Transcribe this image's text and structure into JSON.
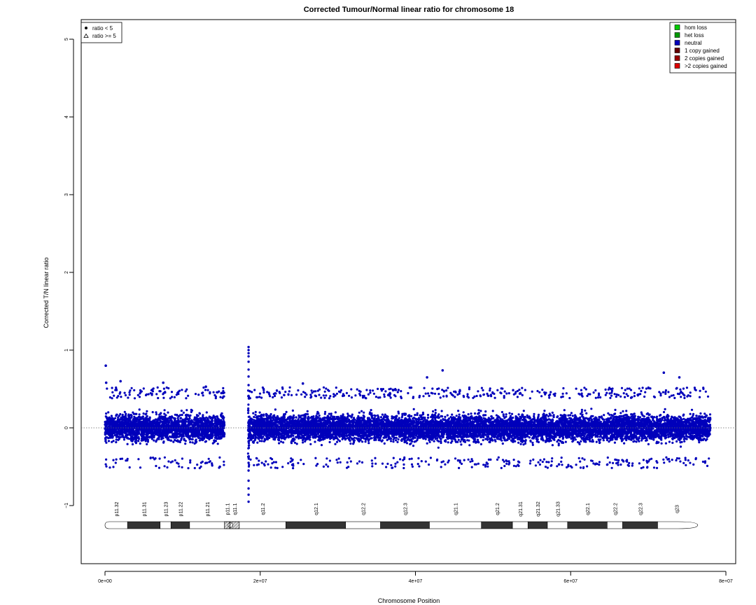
{
  "chart_data": {
    "type": "scatter",
    "title": "Corrected Tumour/Normal linear ratio for chromosome  18",
    "xlabel": "Chromosome Position",
    "ylabel": "Corrected T/N linear ratio",
    "xlim": [
      0,
      80000000
    ],
    "ylim": [
      -1.7,
      5.2
    ],
    "x_ticks": [
      0,
      20000000,
      40000000,
      60000000,
      80000000
    ],
    "x_tick_labels": [
      "0e+00",
      "2e+07",
      "4e+07",
      "6e+07",
      "8e+07"
    ],
    "y_ticks": [
      -1,
      0,
      1,
      2,
      3,
      4,
      5
    ],
    "y_tick_labels": [
      "−1",
      "0",
      "1",
      "2",
      "3",
      "4",
      "5"
    ],
    "reference_line_y": 0,
    "series": [
      {
        "name": "neutral",
        "color": "#0000BB",
        "marker": "circle",
        "segments": [
          {
            "x_start": 0,
            "x_end": 15400000,
            "y_center": 0.0,
            "y_spread": 0.38
          },
          {
            "x_start": 18500000,
            "x_end": 78000000,
            "y_center": 0.0,
            "y_spread": 0.38
          }
        ],
        "centromere_column": {
          "x": 18500000,
          "y_values": [
            1.04,
            1.0,
            0.96,
            0.92,
            0.85,
            0.75,
            0.66,
            0.55,
            -0.45,
            -0.55,
            -0.68,
            -0.78,
            -0.86,
            -0.95
          ]
        },
        "outliers": [
          {
            "x": 100000,
            "y": 0.8
          },
          {
            "x": 150000,
            "y": 0.58
          },
          {
            "x": 2000000,
            "y": 0.6
          },
          {
            "x": 7500000,
            "y": 0.58
          },
          {
            "x": 13000000,
            "y": 0.53
          },
          {
            "x": 14800000,
            "y": -0.5
          },
          {
            "x": 25500000,
            "y": 0.57
          },
          {
            "x": 41500000,
            "y": 0.65
          },
          {
            "x": 43500000,
            "y": 0.74
          },
          {
            "x": 45500000,
            "y": -0.42
          },
          {
            "x": 58500000,
            "y": -0.47
          },
          {
            "x": 72000000,
            "y": 0.71
          },
          {
            "x": 74000000,
            "y": 0.65
          }
        ]
      }
    ],
    "ratio_legend": {
      "position": "top-left",
      "items": [
        {
          "label": "ratio < 5",
          "marker": "filled-circle"
        },
        {
          "label": "ratio >= 5",
          "marker": "open-triangle"
        }
      ]
    },
    "cn_legend": {
      "position": "top-right",
      "items": [
        {
          "label": "hom loss",
          "color": "#00CC00"
        },
        {
          "label": "het loss",
          "color": "#009900"
        },
        {
          "label": "neutral",
          "color": "#0000BB"
        },
        {
          "label": "1 copy gained",
          "color": "#660000"
        },
        {
          "label": "2 copies gained",
          "color": "#990000"
        },
        {
          "label": ">2 copies gained",
          "color": "#DD0000"
        }
      ]
    },
    "ideogram": {
      "bands": [
        {
          "name": "p11.32",
          "start": 0,
          "end": 2900000,
          "stain": "gneg"
        },
        {
          "name": "p11.31",
          "start": 2900000,
          "end": 7100000,
          "stain": "gpos"
        },
        {
          "name": "p11.23",
          "start": 7100000,
          "end": 8500000,
          "stain": "gneg"
        },
        {
          "name": "p11.22",
          "start": 8500000,
          "end": 10900000,
          "stain": "gpos"
        },
        {
          "name": "p11.21",
          "start": 10900000,
          "end": 15400000,
          "stain": "gneg"
        },
        {
          "name": "p11.1",
          "start": 15400000,
          "end": 16100000,
          "stain": "acen"
        },
        {
          "name": "q11.1",
          "start": 16100000,
          "end": 17300000,
          "stain": "acen"
        },
        {
          "name": "q11.2",
          "start": 17300000,
          "end": 23300000,
          "stain": "gneg"
        },
        {
          "name": "q12.1",
          "start": 23300000,
          "end": 31000000,
          "stain": "gpos"
        },
        {
          "name": "q12.2",
          "start": 31000000,
          "end": 35500000,
          "stain": "gneg"
        },
        {
          "name": "q12.3",
          "start": 35500000,
          "end": 41800000,
          "stain": "gpos"
        },
        {
          "name": "q21.1",
          "start": 41800000,
          "end": 48500000,
          "stain": "gneg"
        },
        {
          "name": "q21.2",
          "start": 48500000,
          "end": 52500000,
          "stain": "gpos"
        },
        {
          "name": "q21.31",
          "start": 52500000,
          "end": 54500000,
          "stain": "gneg"
        },
        {
          "name": "q21.32",
          "start": 54500000,
          "end": 57000000,
          "stain": "gpos"
        },
        {
          "name": "q21.33",
          "start": 57000000,
          "end": 59600000,
          "stain": "gneg"
        },
        {
          "name": "q22.1",
          "start": 59600000,
          "end": 64700000,
          "stain": "gpos"
        },
        {
          "name": "q22.2",
          "start": 64700000,
          "end": 66700000,
          "stain": "gneg"
        },
        {
          "name": "q22.3",
          "start": 66700000,
          "end": 71200000,
          "stain": "gpos"
        },
        {
          "name": "q23",
          "start": 71200000,
          "end": 76100000,
          "stain": "gneg"
        }
      ]
    }
  }
}
